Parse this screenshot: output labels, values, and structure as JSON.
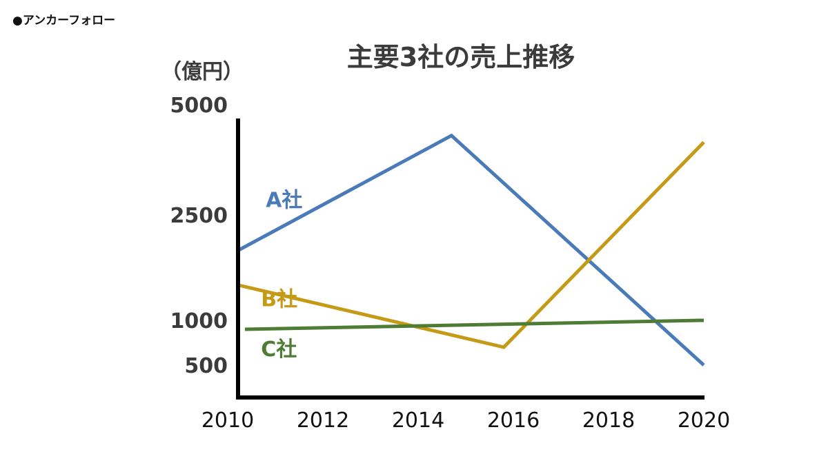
{
  "brand": "●アンカーフォロー",
  "chart_data": {
    "type": "line",
    "title": "主要3社の売上推移",
    "ylabel": "（億円）",
    "xlabel": "",
    "x_ticks": [
      "2010",
      "2012",
      "2014",
      "2016",
      "2018",
      "2020"
    ],
    "y_ticks": [
      "500",
      "1000",
      "2500",
      "5000"
    ],
    "grid": false,
    "legend": "inline labels next to each line",
    "series": [
      {
        "name": "A社",
        "color": "#4a7ab8",
        "points": [
          [
            2010,
            2000
          ],
          [
            2014.7,
            4300
          ],
          [
            2020,
            500
          ]
        ]
      },
      {
        "name": "B社",
        "color": "#c49a16",
        "points": [
          [
            2010,
            1500
          ],
          [
            2015.8,
            700
          ],
          [
            2020,
            4150
          ]
        ]
      },
      {
        "name": "C社",
        "color": "#4e7c34",
        "points": [
          [
            2010,
            900
          ],
          [
            2020,
            1000
          ]
        ]
      }
    ]
  }
}
